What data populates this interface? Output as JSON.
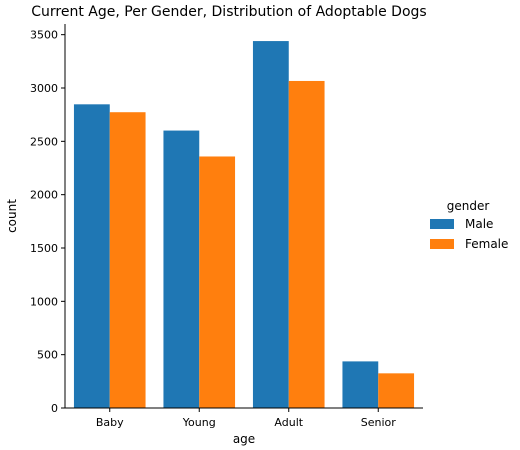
{
  "chart_data": {
    "type": "bar",
    "title": "Current Age, Per Gender, Distribution of Adoptable Dogs",
    "xlabel": "age",
    "ylabel": "count",
    "categories": [
      "Baby",
      "Young",
      "Adult",
      "Senior"
    ],
    "series": [
      {
        "name": "Male",
        "color": "#1f77b4",
        "values": [
          2847,
          2601,
          3440,
          437
        ]
      },
      {
        "name": "Female",
        "color": "#ff7f0e",
        "values": [
          2773,
          2358,
          3066,
          325
        ]
      }
    ],
    "ylim": [
      0,
      3600
    ],
    "yticks": [
      0,
      500,
      1000,
      1500,
      2000,
      2500,
      3000,
      3500
    ],
    "legend": {
      "title": "gender",
      "position": "center-right"
    },
    "grid": false
  }
}
